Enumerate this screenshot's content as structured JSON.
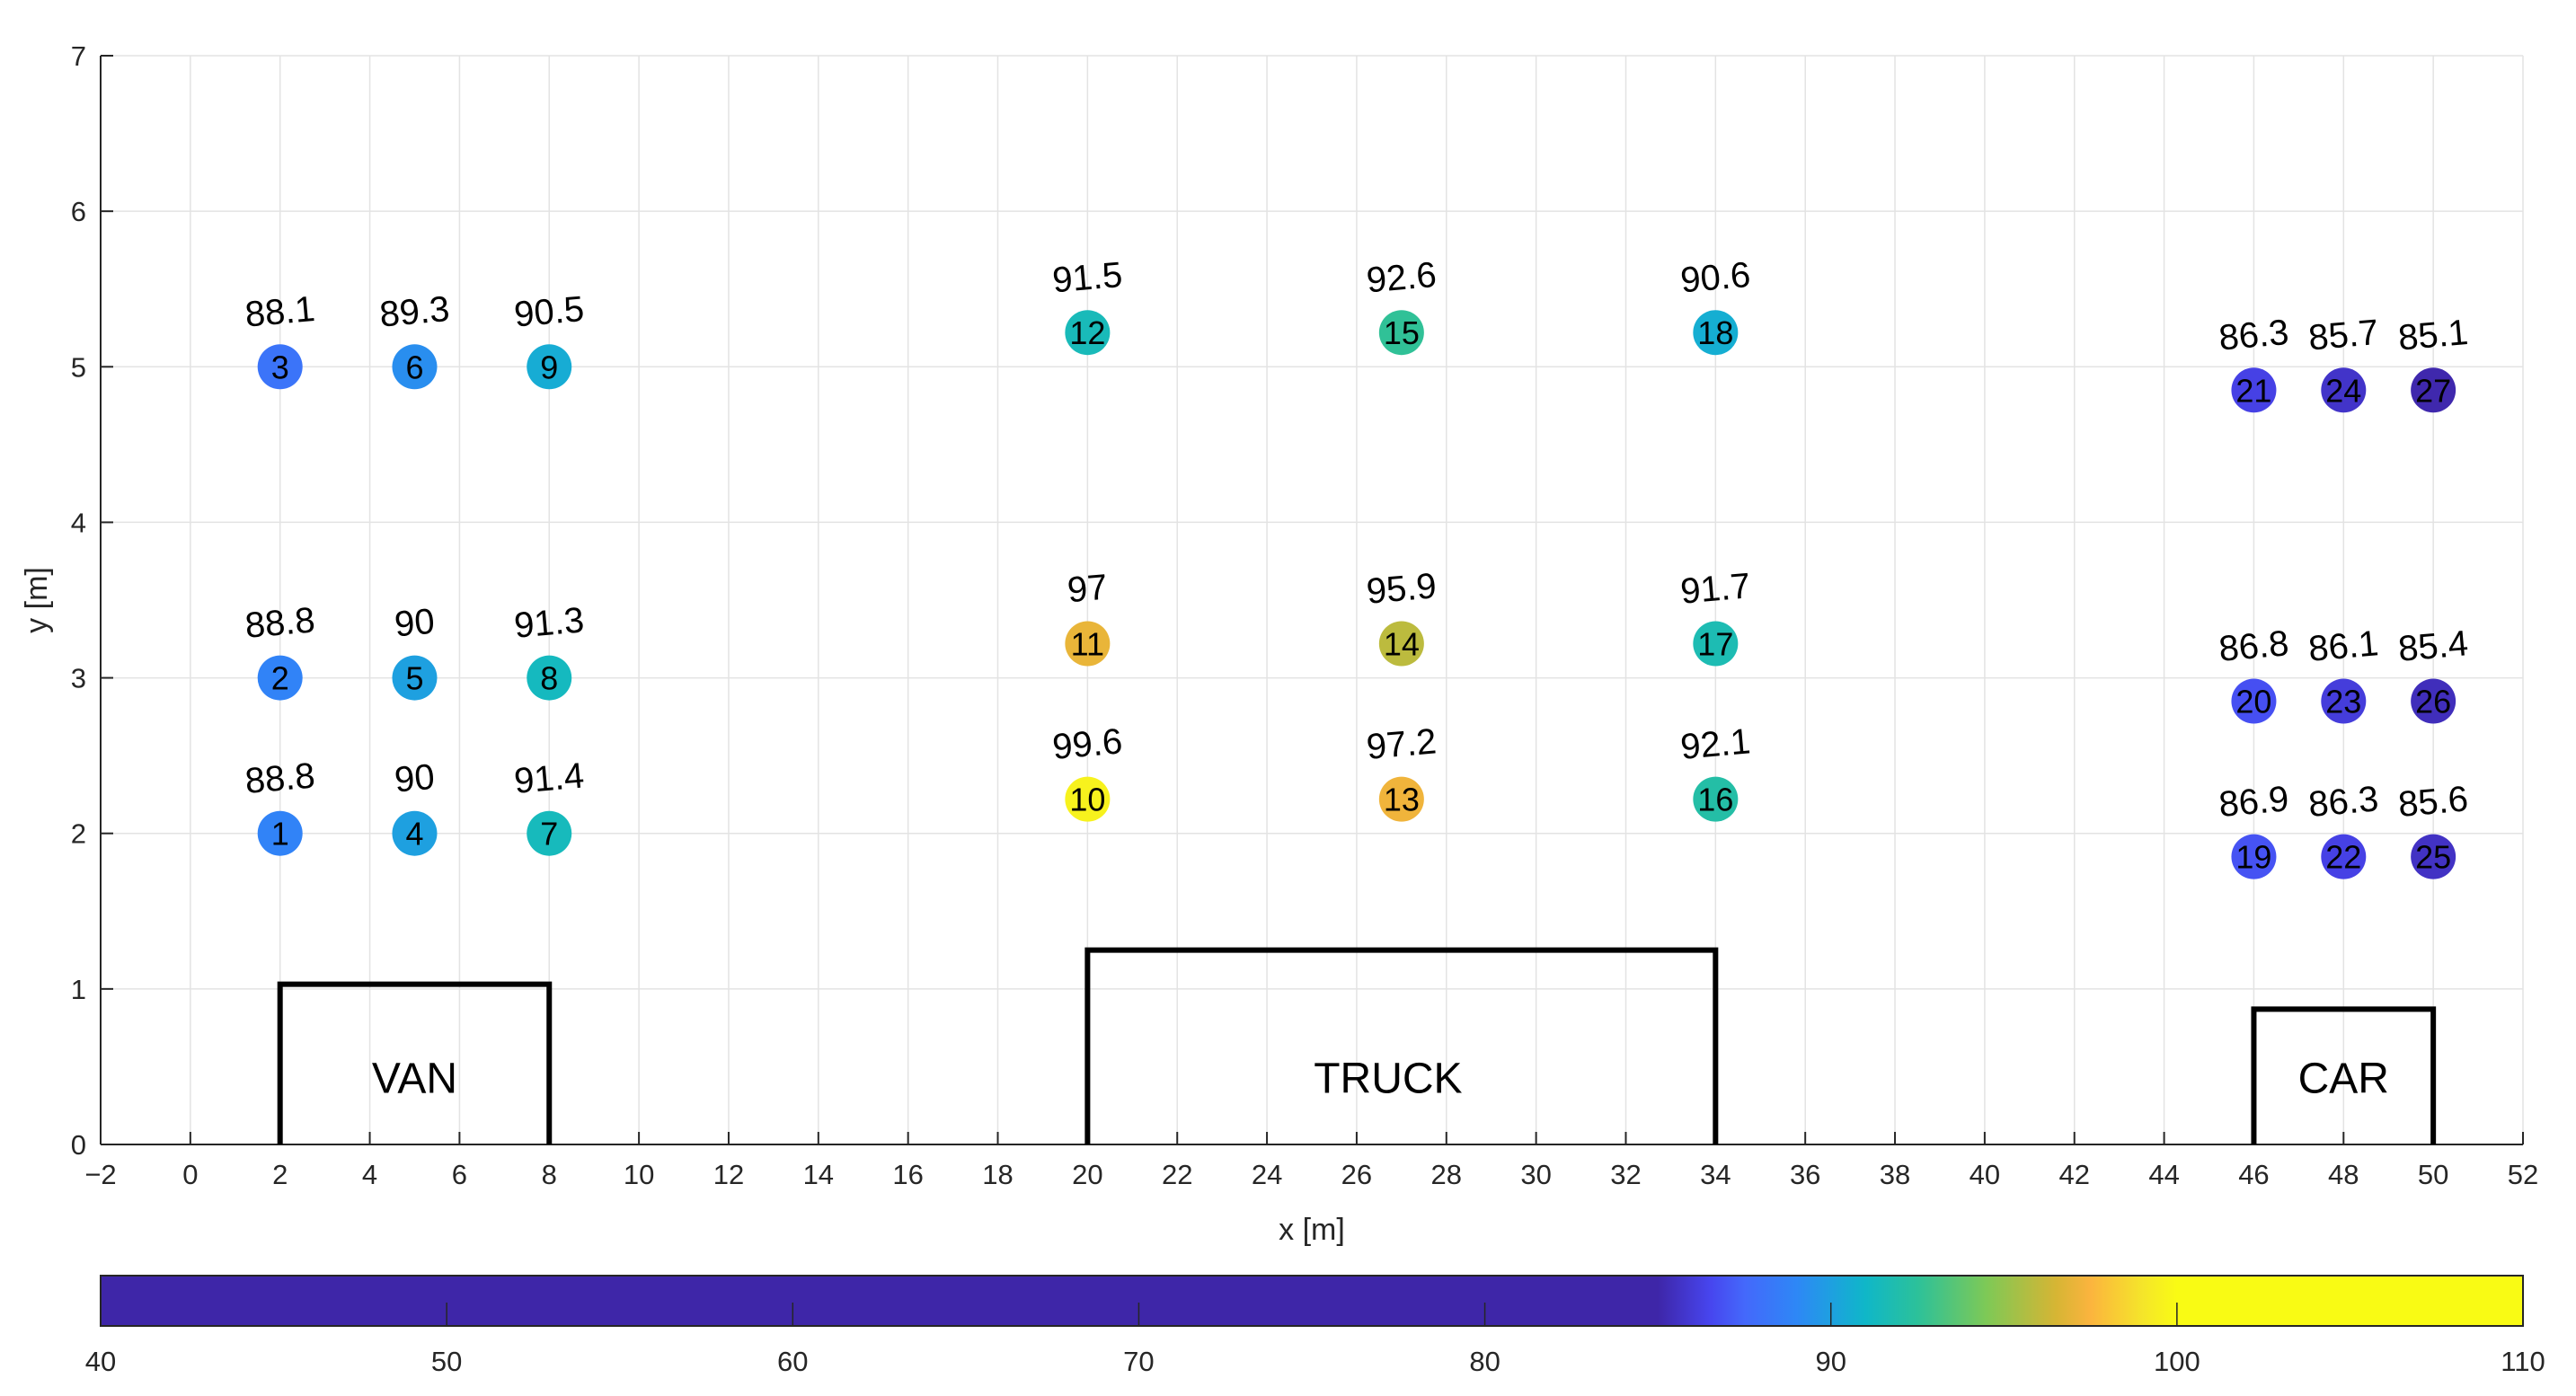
{
  "chart_data": {
    "type": "scatter",
    "xlabel": "x [m]",
    "ylabel": "y [m]",
    "xlim": [
      -2,
      52
    ],
    "ylim": [
      0,
      7
    ],
    "xticks": [
      -2,
      0,
      2,
      4,
      6,
      8,
      10,
      12,
      14,
      16,
      18,
      20,
      22,
      24,
      26,
      28,
      30,
      32,
      34,
      36,
      38,
      40,
      42,
      44,
      46,
      48,
      50,
      52
    ],
    "xtick_labels": [
      "−2",
      "0",
      "2",
      "4",
      "6",
      "8",
      "10",
      "12",
      "14",
      "16",
      "18",
      "20",
      "22",
      "24",
      "26",
      "28",
      "30",
      "32",
      "34",
      "36",
      "38",
      "40",
      "42",
      "44",
      "46",
      "48",
      "50",
      "52"
    ],
    "yticks": [
      0,
      1,
      2,
      3,
      4,
      5,
      6,
      7
    ],
    "ytick_labels": [
      "0",
      "1",
      "2",
      "3",
      "4",
      "5",
      "6",
      "7"
    ],
    "grid": true,
    "points": [
      {
        "id": "1",
        "x": 2,
        "y": 2,
        "value": "88.8"
      },
      {
        "id": "2",
        "x": 2,
        "y": 3,
        "value": "88.8"
      },
      {
        "id": "3",
        "x": 2,
        "y": 5,
        "value": "88.1"
      },
      {
        "id": "4",
        "x": 5,
        "y": 2,
        "value": "90"
      },
      {
        "id": "5",
        "x": 5,
        "y": 3,
        "value": "90"
      },
      {
        "id": "6",
        "x": 5,
        "y": 5,
        "value": "89.3"
      },
      {
        "id": "7",
        "x": 8,
        "y": 2,
        "value": "91.4"
      },
      {
        "id": "8",
        "x": 8,
        "y": 3,
        "value": "91.3"
      },
      {
        "id": "9",
        "x": 8,
        "y": 5,
        "value": "90.5"
      },
      {
        "id": "10",
        "x": 20,
        "y": 2.22,
        "value": "99.6"
      },
      {
        "id": "11",
        "x": 20,
        "y": 3.22,
        "value": "97"
      },
      {
        "id": "12",
        "x": 20,
        "y": 5.22,
        "value": "91.5"
      },
      {
        "id": "13",
        "x": 27,
        "y": 2.22,
        "value": "97.2"
      },
      {
        "id": "14",
        "x": 27,
        "y": 3.22,
        "value": "95.9"
      },
      {
        "id": "15",
        "x": 27,
        "y": 5.22,
        "value": "92.6"
      },
      {
        "id": "16",
        "x": 34,
        "y": 2.22,
        "value": "92.1"
      },
      {
        "id": "17",
        "x": 34,
        "y": 3.22,
        "value": "91.7"
      },
      {
        "id": "18",
        "x": 34,
        "y": 5.22,
        "value": "90.6"
      },
      {
        "id": "19",
        "x": 46,
        "y": 1.85,
        "value": "86.9"
      },
      {
        "id": "20",
        "x": 46,
        "y": 2.85,
        "value": "86.8"
      },
      {
        "id": "21",
        "x": 46,
        "y": 4.85,
        "value": "86.3"
      },
      {
        "id": "22",
        "x": 48,
        "y": 1.85,
        "value": "86.3"
      },
      {
        "id": "23",
        "x": 48,
        "y": 2.85,
        "value": "86.1"
      },
      {
        "id": "24",
        "x": 48,
        "y": 4.85,
        "value": "85.7"
      },
      {
        "id": "25",
        "x": 50,
        "y": 1.85,
        "value": "85.6"
      },
      {
        "id": "26",
        "x": 50,
        "y": 2.85,
        "value": "85.4"
      },
      {
        "id": "27",
        "x": 50,
        "y": 4.85,
        "value": "85.1"
      }
    ],
    "vehicles": [
      {
        "label": "VAN",
        "x0": 2,
        "x1": 8,
        "height": 1.03,
        "label_x": 5
      },
      {
        "label": "TRUCK",
        "x0": 20,
        "x1": 34,
        "height": 1.25,
        "label_x": 26.7
      },
      {
        "label": "CAR",
        "x0": 46,
        "x1": 50,
        "height": 0.87,
        "label_x": 48
      }
    ],
    "colorbar": {
      "range": [
        40,
        110
      ],
      "ticks": [
        40,
        50,
        60,
        70,
        80,
        90,
        100,
        110
      ],
      "tick_labels": [
        "40",
        "50",
        "60",
        "70",
        "80",
        "90",
        "100",
        "110"
      ],
      "placement": "bottom",
      "stops": [
        {
          "v": 40,
          "c": "#3e26a8"
        },
        {
          "v": 85,
          "c": "#3e26a8"
        },
        {
          "v": 86.5,
          "c": "#4745ee"
        },
        {
          "v": 87.5,
          "c": "#4468fb"
        },
        {
          "v": 89,
          "c": "#2e87f6"
        },
        {
          "v": 90,
          "c": "#1ea0e0"
        },
        {
          "v": 91,
          "c": "#0fb7c8"
        },
        {
          "v": 92.5,
          "c": "#2cc19a"
        },
        {
          "v": 94.5,
          "c": "#7ec956"
        },
        {
          "v": 96.5,
          "c": "#d6b534"
        },
        {
          "v": 97.5,
          "c": "#fbb43e"
        },
        {
          "v": 99,
          "c": "#f5e52a"
        },
        {
          "v": 100,
          "c": "#f9fb14"
        },
        {
          "v": 110,
          "c": "#f9fb14"
        }
      ]
    }
  }
}
